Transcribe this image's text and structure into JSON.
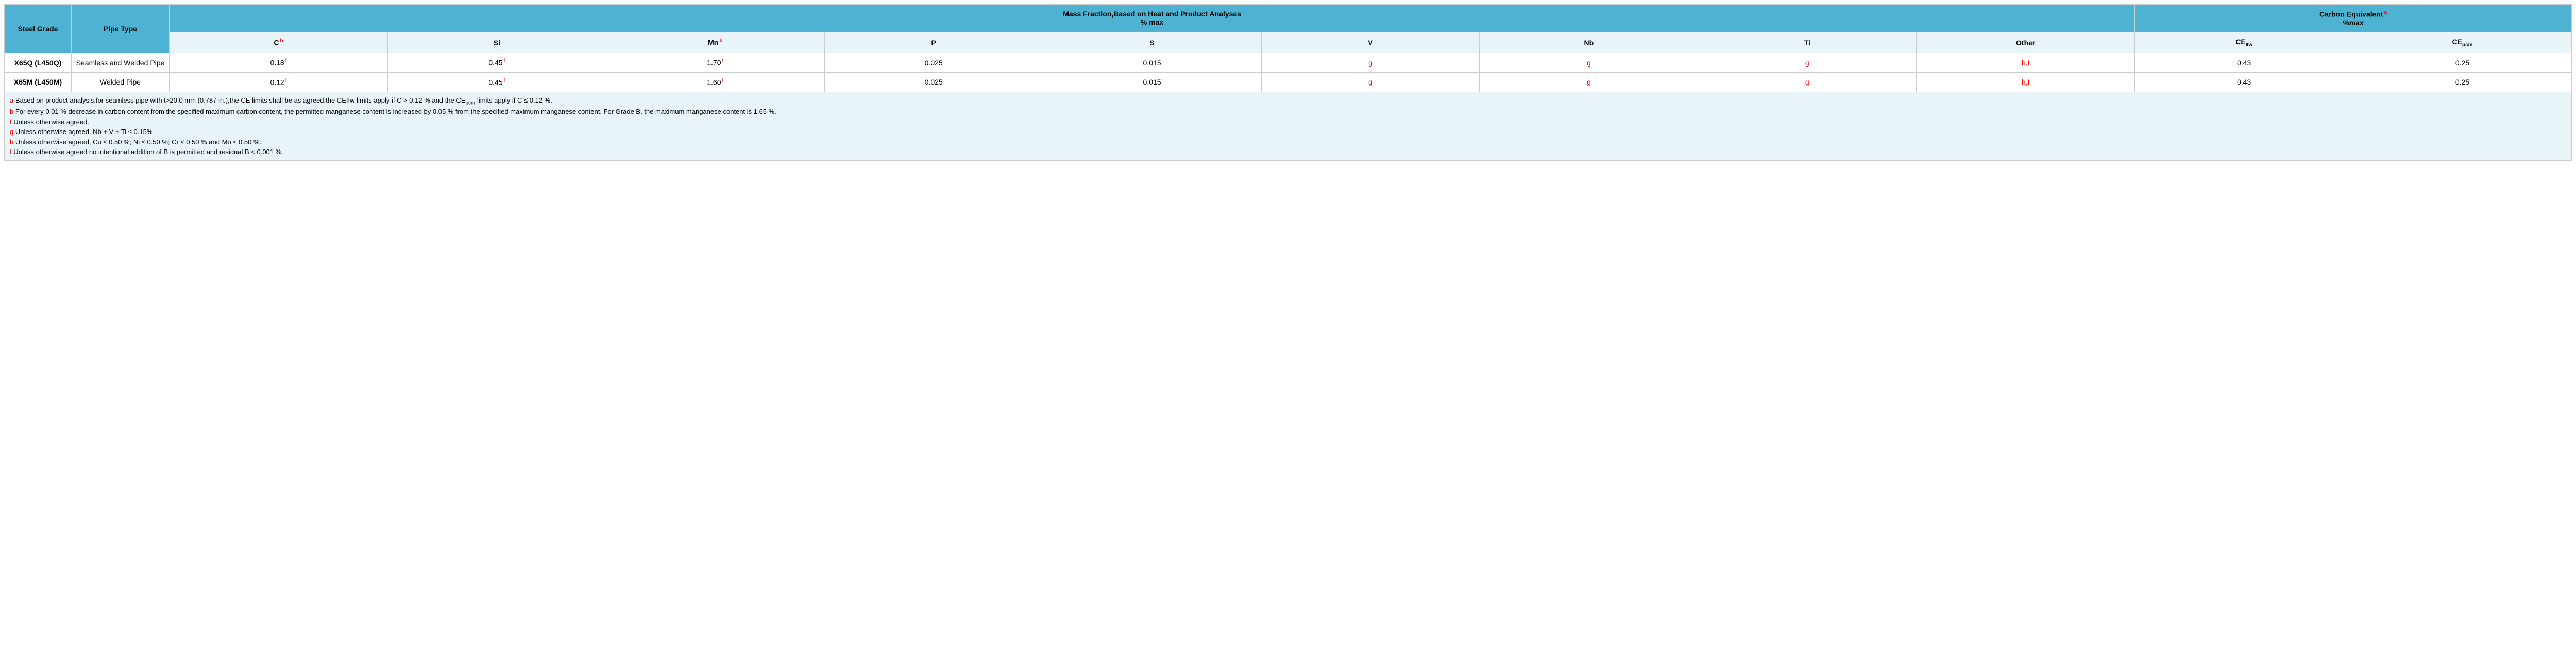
{
  "headers": {
    "steel_grade": "Steel Grade",
    "pipe_type": "Pipe Type",
    "mass_fraction_line1": "Mass Fraction,Based on Heat and Product Analyses",
    "mass_fraction_line2": "% max",
    "carbon_eq_line1": "Carbon Equivalent",
    "carbon_eq_sup": "a",
    "carbon_eq_line2": "%max",
    "c": "C",
    "c_sup": "b",
    "si": "Si",
    "mn": "Mn",
    "mn_sup": "b",
    "p": "P",
    "s": "S",
    "v": "V",
    "nb": "Nb",
    "ti": "Ti",
    "other": "Other",
    "ce_iiw": "CE",
    "ce_iiw_sub": "IIw",
    "ce_pcm": "CE",
    "ce_pcm_sub": "pcm"
  },
  "rows": [
    {
      "grade": "X65Q (L450Q)",
      "pipe": "Seamless and Welded Pipe",
      "c": "0.18",
      "c_sup": "f",
      "si": "0.45",
      "si_sup": "f",
      "mn": "1.70",
      "mn_sup": "f",
      "p": "0.025",
      "s": "0.015",
      "v": "g",
      "nb": "g",
      "ti": "g",
      "other": "h,I",
      "ce_iiw": "0.43",
      "ce_pcm": "0.25"
    },
    {
      "grade": "X65M (L450M)",
      "pipe": "Welded Pipe",
      "c": "0.12",
      "c_sup": "f",
      "si": "0.45",
      "si_sup": "f",
      "mn": "1.60",
      "mn_sup": "f",
      "p": "0.025",
      "s": "0.015",
      "v": "g",
      "nb": "g",
      "ti": "g",
      "other": "h,I",
      "ce_iiw": "0.43",
      "ce_pcm": "0.25"
    }
  ],
  "footnotes": {
    "a_key": "a",
    "a_text": " Based on product analysis,for seamless pipe with t>20.0 mm (0.787 in.),the CE limits shall be as agreed;the CEIIw limits apply if C > 0.12 % and the CE",
    "a_sub": "pcm",
    "a_text2": " limits apply if C ≤ 0.12 %.",
    "b_key": "b",
    "b_text": " For every 0.01 % decrease in carbon content from the specified maximum carbon content, the permitted manganese content is increased by 0.05 % from the specified maximum manganese content. For Grade B, the maximum manganese content is 1.65 %.",
    "f_key": "f",
    "f_text": " Unless otherwise agreed.",
    "g_key": "g",
    "g_text": " Unless otherwise agreed, Nb + V + Ti ≤ 0.15%.",
    "h_key": "h",
    "h_text": " Unless otherwise agreed, Cu ≤ 0.50 %; Ni ≤ 0.50 %; Cr ≤ 0.50 % and Mo ≤ 0.50 %.",
    "i_key": "I",
    "i_text": " Unless otherwise agreed no intentional addition of B is permitted and residual B < 0.001 %."
  },
  "style": {
    "header_bg": "#4eb3d3",
    "light_bg": "#e8f4f8",
    "border_color": "#cccccc",
    "red": "#ff0000",
    "text": "#000000"
  }
}
